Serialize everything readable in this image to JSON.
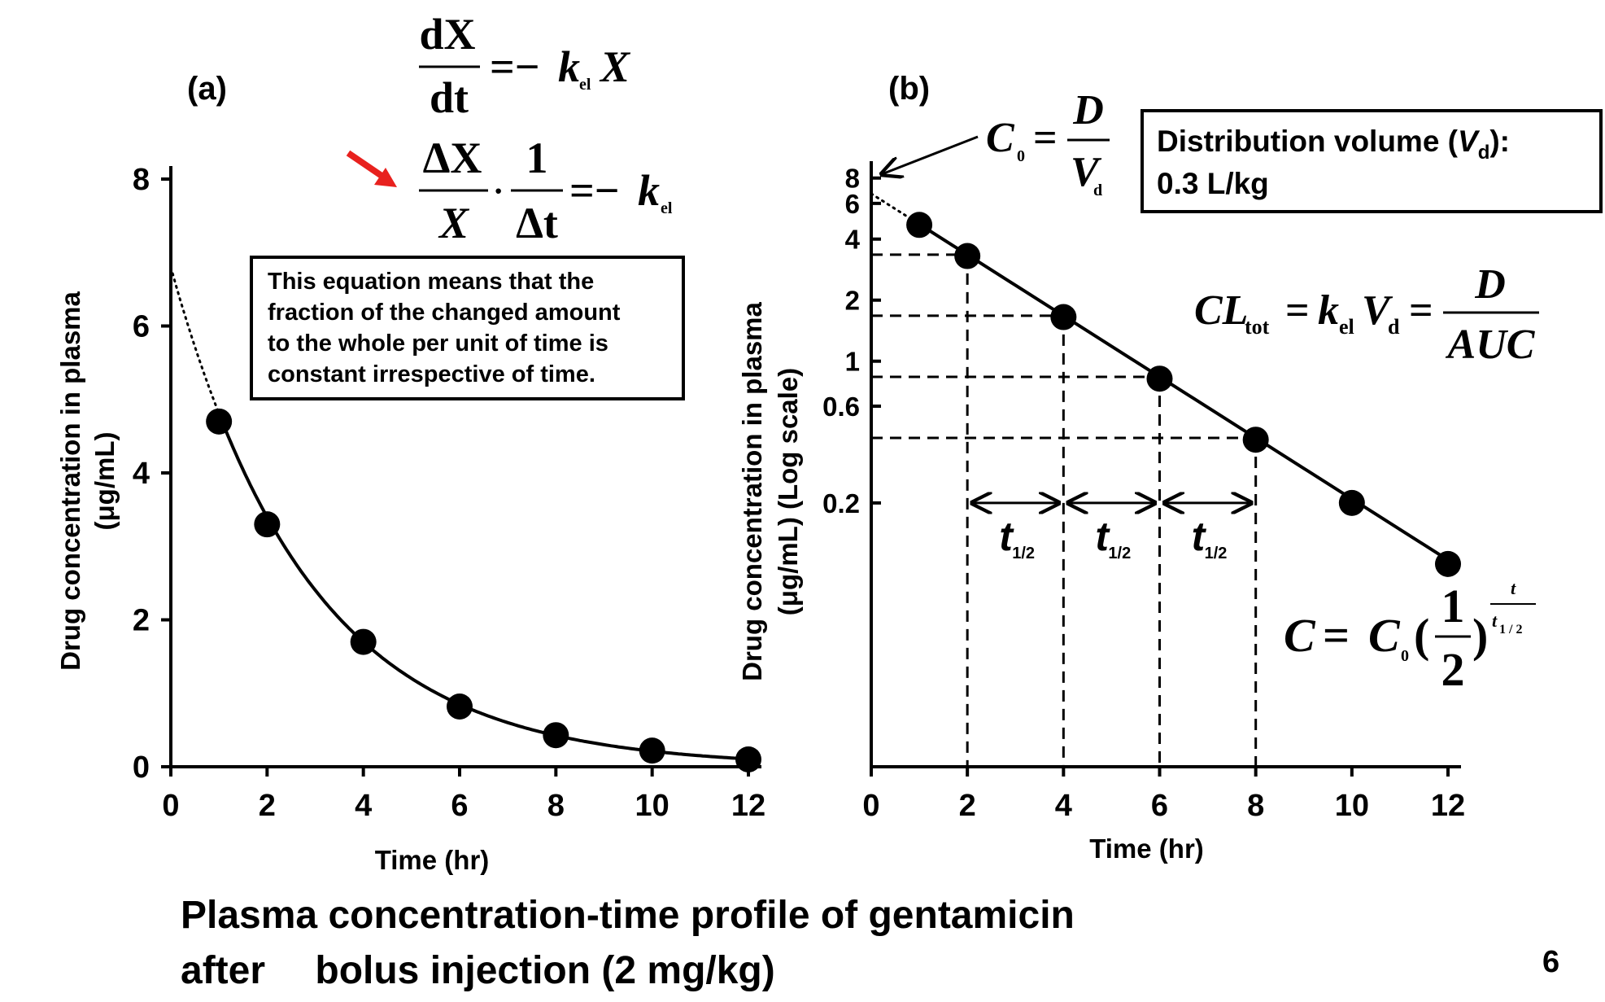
{
  "page_number": "6",
  "caption": {
    "line1": "Plasma concentration-time profile of gentamicin",
    "line2": "after  bolus injection (2 mg/kg)"
  },
  "panel_a": {
    "label": "(a)",
    "eq1": {
      "num": "dX",
      "den": "dt",
      "rhs_prefix": "=−",
      "rhs_k": "k",
      "rhs_sub": "el",
      "rhs_x": "X"
    },
    "eq2": {
      "num1": "ΔX",
      "den1": "X",
      "dot": "·",
      "num2": "1",
      "den2": "Δt",
      "rhs_prefix": "=−",
      "rhs_k": "k",
      "rhs_sub": "el"
    },
    "note": {
      "line1": "This equation means that the",
      "line2": "fraction of the changed amount",
      "line3": "to the whole per unit of time is",
      "line4": "constant irrespective of time."
    },
    "arrow_color": "#e8211e"
  },
  "panel_b": {
    "label": "(b)",
    "c0": {
      "lhs": "C",
      "lhs_sub": "0",
      "eq": "=",
      "num": "D",
      "den": "V",
      "den_sub": "d"
    },
    "vd_box": {
      "line1_pre": "Distribution volume (",
      "line1_v": "V",
      "line1_sub": "d",
      "line1_post": "):",
      "line2": "0.3 L/kg"
    },
    "cl": {
      "cl": "CL",
      "cl_sub": "tot",
      "eq1": "=",
      "k": "k",
      "k_sub": "el",
      "v": "V",
      "v_sub": "d",
      "eq2": "=",
      "num": "D",
      "den": "AUC"
    },
    "halflife": {
      "t": "t",
      "sub": "1/2"
    },
    "c_eq": {
      "lhs": "C",
      "eq": "=",
      "c": "C",
      "c_sub": "0",
      "paren_open": "(",
      "num": "1",
      "den": "2",
      "paren_close": ")",
      "exp_num": "t",
      "exp_den_t": "t",
      "exp_den_sub": "1 / 2"
    }
  },
  "chart_data": [
    {
      "type": "line",
      "xlabel": "Time (hr)",
      "ylabel": [
        "Drug concentration in plasma",
        "(μg/mL)"
      ],
      "x_ticks": [
        "0",
        "2",
        "4",
        "6",
        "8",
        "10",
        "12"
      ],
      "y_ticks": [
        "0",
        "2",
        "4",
        "6",
        "8"
      ],
      "xlim": [
        0,
        12
      ],
      "ylim": [
        0,
        8
      ],
      "series": [
        {
          "x": [
            1,
            2,
            4,
            6,
            8,
            10,
            12
          ],
          "y": [
            4.7,
            3.3,
            1.7,
            0.82,
            0.43,
            0.22,
            0.1
          ],
          "fit_y0": 6.8,
          "fit_k": 0.3466
        }
      ]
    },
    {
      "type": "line",
      "y_scale": "log",
      "xlabel": "Time (hr)",
      "ylabel": [
        "Drug concentration in plasma",
        "(μg/mL) (Log scale)"
      ],
      "x_ticks": [
        "0",
        "2",
        "4",
        "6",
        "8",
        "10",
        "12"
      ],
      "y_ticks": [
        "8",
        "6",
        "4",
        "2",
        "1",
        "0.6",
        "0.2"
      ],
      "y_tick_values": [
        8,
        6,
        4,
        2,
        1,
        0.6,
        0.2
      ],
      "xlim": [
        0,
        12
      ],
      "ylim": [
        0.01,
        9
      ],
      "series": [
        {
          "x": [
            1,
            2,
            4,
            6,
            8,
            10,
            12
          ],
          "y": [
            4.7,
            3.3,
            1.65,
            0.82,
            0.41,
            0.2,
            0.1
          ],
          "fit_y0": 6.7,
          "fit_k": 0.3466
        }
      ],
      "halflife_marks_x": [
        2,
        4,
        6,
        8
      ]
    }
  ]
}
